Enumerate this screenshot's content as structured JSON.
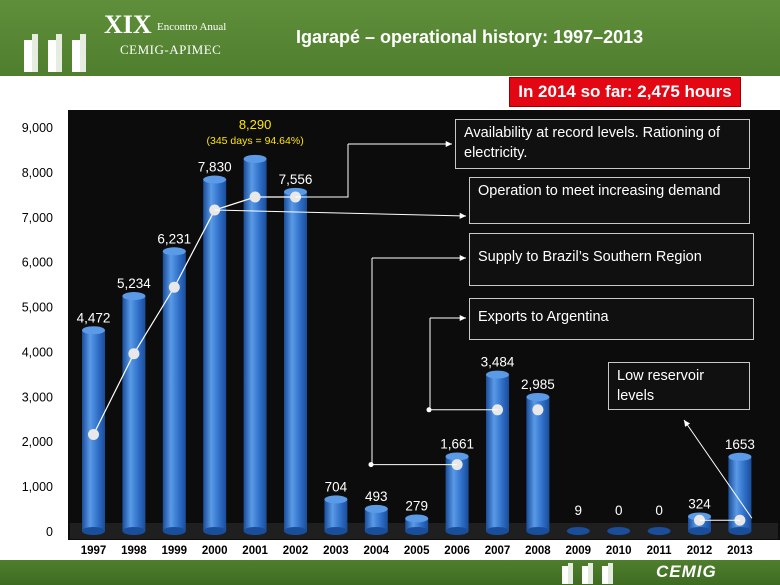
{
  "header": {
    "event_roman": "XIX",
    "event_annual": "Encontro Anual",
    "event_org": "CEMIG-APIMEC",
    "title": "Igarapé – operational history: 1997–2013"
  },
  "banner": {
    "text": "In 2014 so far: 2,475 hours"
  },
  "callouts": [
    {
      "text": "Availability at record levels. Rationing of electricity."
    },
    {
      "text": "Operation to meet increasing demand"
    },
    {
      "text": "Supply to Brazil’s Southern Region"
    },
    {
      "text": "Exports to Argentina"
    },
    {
      "text": "Low reservoir levels"
    }
  ],
  "footer": {
    "brand": "CEMIG"
  },
  "chart_data": {
    "type": "bar",
    "categories": [
      "1997",
      "1998",
      "1999",
      "2000",
      "2001",
      "2002",
      "2003",
      "2004",
      "2005",
      "2006",
      "2007",
      "2008",
      "2009",
      "2010",
      "2011",
      "2012",
      "2013"
    ],
    "values": [
      4472,
      5234,
      6231,
      7830,
      8290,
      7556,
      704,
      493,
      279,
      1661,
      3484,
      2985,
      9,
      0,
      0,
      324,
      1653
    ],
    "value_labels": [
      "4,472",
      "5,234",
      "6,231",
      "7,830",
      "8,290",
      "7,556",
      "704",
      "493",
      "279",
      "1,661",
      "3,484",
      "2,985",
      "9",
      "0",
      "0",
      "324",
      "1653"
    ],
    "annotation": "(345 days = 94.64%)",
    "ylim": [
      0,
      9000
    ],
    "yticks": [
      0,
      1000,
      2000,
      3000,
      4000,
      5000,
      6000,
      7000,
      8000,
      9000
    ],
    "ytick_labels": [
      "0",
      "1,000",
      "2,000",
      "3,000",
      "4,000",
      "5,000",
      "6,000",
      "7,000",
      "8,000",
      "9,000"
    ],
    "line_points": [
      {
        "category": "1997",
        "value": 2150
      },
      {
        "category": "1998",
        "value": 3950
      },
      {
        "category": "1999",
        "value": 5430
      },
      {
        "category": "2000",
        "value": 7150
      },
      {
        "category": "2001",
        "value": 7440
      },
      {
        "category": "2002",
        "value": 7440
      }
    ],
    "markers": [
      {
        "category": "2006",
        "value": 1480
      },
      {
        "category": "2007",
        "value": 2700
      },
      {
        "category": "2008",
        "value": 2700
      },
      {
        "category": "2012",
        "value": 240
      },
      {
        "category": "2013",
        "value": 240
      }
    ],
    "colors": {
      "bar": "#2f6fc8",
      "bar_light": "#5a9ae6",
      "bar_dark": "#1a4d9a",
      "background": "#0c0c0c",
      "text": "#ffffff",
      "highlight": "#ffe600"
    }
  }
}
